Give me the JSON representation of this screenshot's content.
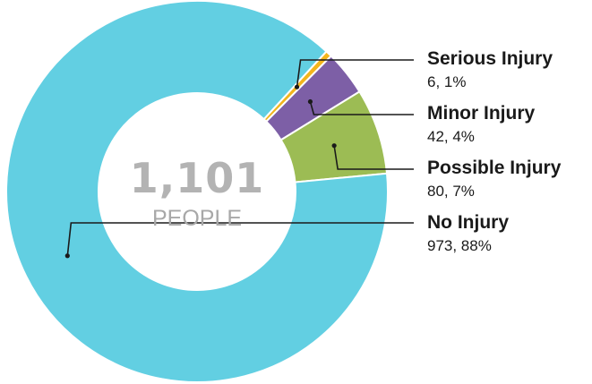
{
  "chart_data": {
    "type": "pie",
    "center_total": "1,101",
    "center_unit": "PEOPLE",
    "slices": [
      {
        "label": "Serious Injury",
        "value": 6,
        "value_label": "6, 1%",
        "color": "#f2b51c"
      },
      {
        "label": "Minor Injury",
        "value": 42,
        "value_label": "42, 4%",
        "color": "#7d5fa6"
      },
      {
        "label": "Possible Injury",
        "value": 80,
        "value_label": "80, 7%",
        "color": "#9cbc54"
      },
      {
        "label": "No Injury",
        "value": 973,
        "value_label": "973, 88%",
        "color": "#62cfe2"
      }
    ],
    "legend_placement": "right"
  }
}
